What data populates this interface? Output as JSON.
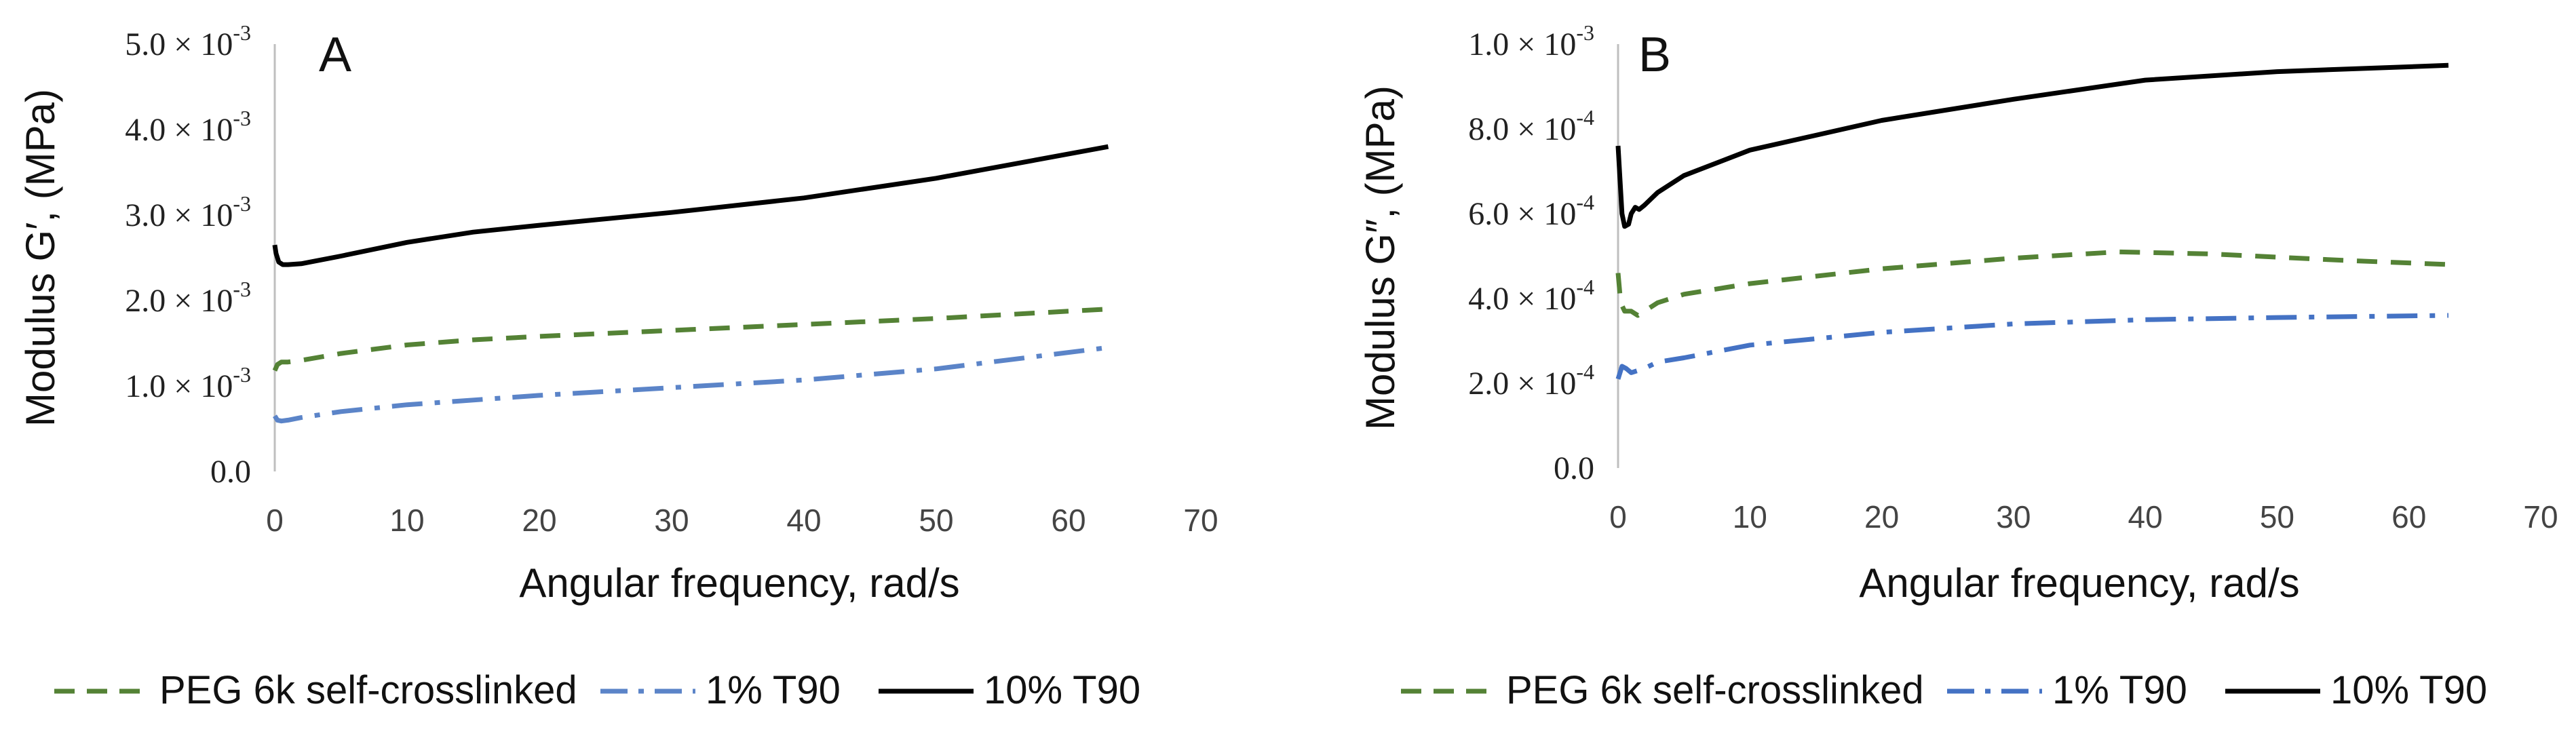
{
  "chart_data": [
    {
      "type": "line",
      "panel_label": "A",
      "xlabel": "Angular frequency, rad/s",
      "ylabel": "Modulus G′, (MPa)",
      "xlim": [
        0,
        70
      ],
      "ylim": [
        0,
        0.005
      ],
      "xticks": [
        "0",
        "10",
        "20",
        "30",
        "40",
        "50",
        "60",
        "70"
      ],
      "yticks": [
        {
          "value": 0,
          "mantissa": "0.0",
          "exponent": ""
        },
        {
          "value": 0.001,
          "mantissa": "1.0 × 10",
          "exponent": "-3"
        },
        {
          "value": 0.002,
          "mantissa": "2.0 × 10",
          "exponent": "-3"
        },
        {
          "value": 0.003,
          "mantissa": "3.0 × 10",
          "exponent": "-3"
        },
        {
          "value": 0.004,
          "mantissa": "4.0 × 10",
          "exponent": "-3"
        },
        {
          "value": 0.005,
          "mantissa": "5.0 × 10",
          "exponent": "-3"
        }
      ],
      "grid": false,
      "legend_position": "bottom",
      "series": [
        {
          "name": "PEG 6k self-crosslinked",
          "color": "#548235",
          "style": "dashed",
          "x": [
            0,
            0.2,
            0.5,
            1,
            2,
            5,
            10,
            15,
            20,
            30,
            40,
            50,
            63
          ],
          "y": [
            0.00118,
            0.00125,
            0.00128,
            0.00128,
            0.0013,
            0.00138,
            0.00148,
            0.00154,
            0.00158,
            0.00165,
            0.00172,
            0.00179,
            0.0019
          ]
        },
        {
          "name": "1% T90",
          "color": "#5B84C8",
          "style": "dashdot",
          "x": [
            0,
            0.2,
            0.5,
            1,
            2,
            5,
            10,
            20,
            30,
            40,
            50,
            63
          ],
          "y": [
            0.00065,
            0.0006,
            0.00059,
            0.0006,
            0.00063,
            0.0007,
            0.00078,
            0.00089,
            0.00098,
            0.00107,
            0.0012,
            0.00145
          ]
        },
        {
          "name": "10% T90",
          "color": "#000000",
          "style": "solid",
          "x": [
            0,
            0.1,
            0.3,
            0.6,
            1,
            2,
            5,
            10,
            15,
            20,
            30,
            40,
            50,
            63
          ],
          "y": [
            0.00265,
            0.00255,
            0.00245,
            0.00242,
            0.00242,
            0.00243,
            0.00252,
            0.00268,
            0.0028,
            0.00288,
            0.00303,
            0.0032,
            0.00343,
            0.0038
          ]
        }
      ]
    },
    {
      "type": "line",
      "panel_label": "B",
      "xlabel": "Angular frequency, rad/s",
      "ylabel": "Modulus G″, (MPa)",
      "xlim": [
        0,
        70
      ],
      "ylim": [
        0,
        0.001
      ],
      "xticks": [
        "0",
        "10",
        "20",
        "30",
        "40",
        "50",
        "60",
        "70"
      ],
      "yticks": [
        {
          "value": 0,
          "mantissa": "0.0",
          "exponent": ""
        },
        {
          "value": 0.0002,
          "mantissa": "2.0 × 10",
          "exponent": "-4"
        },
        {
          "value": 0.0004,
          "mantissa": "4.0 × 10",
          "exponent": "-4"
        },
        {
          "value": 0.0006,
          "mantissa": "6.0 × 10",
          "exponent": "-4"
        },
        {
          "value": 0.0008,
          "mantissa": "8.0 × 10",
          "exponent": "-4"
        },
        {
          "value": 0.001,
          "mantissa": "1.0 × 10",
          "exponent": "-3"
        }
      ],
      "grid": false,
      "legend_position": "bottom",
      "series": [
        {
          "name": "PEG 6k self-crosslinked",
          "color": "#548235",
          "style": "dashed",
          "x": [
            0,
            0.2,
            0.5,
            1,
            1.5,
            2,
            3,
            5,
            10,
            20,
            30,
            38,
            45,
            55,
            63
          ],
          "y": [
            0.00046,
            0.00039,
            0.00037,
            0.00037,
            0.00036,
            0.00037,
            0.00039,
            0.00041,
            0.000435,
            0.00047,
            0.000495,
            0.00051,
            0.000505,
            0.00049,
            0.00048
          ]
        },
        {
          "name": "1% T90",
          "color": "#4472C4",
          "style": "dashdot",
          "x": [
            0,
            0.3,
            0.6,
            1,
            1.5,
            2,
            3,
            5,
            10,
            20,
            30,
            40,
            50,
            63
          ],
          "y": [
            0.00021,
            0.00024,
            0.000235,
            0.000225,
            0.00023,
            0.000235,
            0.00025,
            0.00026,
            0.00029,
            0.00032,
            0.00034,
            0.00035,
            0.000355,
            0.00036
          ]
        },
        {
          "name": "10% T90",
          "color": "#000000",
          "style": "solid",
          "x": [
            0,
            0.15,
            0.3,
            0.5,
            0.8,
            1,
            1.3,
            1.6,
            2,
            3,
            5,
            10,
            20,
            30,
            40,
            50,
            63
          ],
          "y": [
            0.00076,
            0.00068,
            0.0006,
            0.00057,
            0.000575,
            0.0006,
            0.000615,
            0.00061,
            0.00062,
            0.00065,
            0.00069,
            0.00075,
            0.00082,
            0.00087,
            0.000915,
            0.000935,
            0.00095
          ]
        }
      ]
    }
  ]
}
